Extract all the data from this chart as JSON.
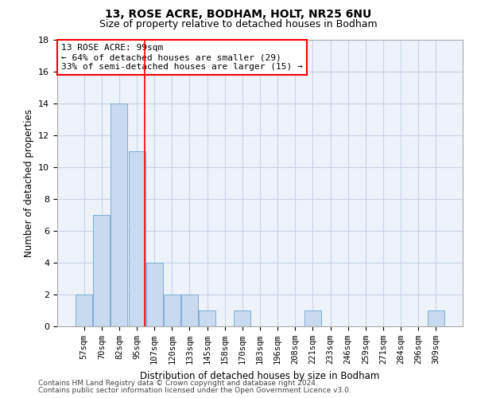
{
  "title1": "13, ROSE ACRE, BODHAM, HOLT, NR25 6NU",
  "title2": "Size of property relative to detached houses in Bodham",
  "xlabel": "Distribution of detached houses by size in Bodham",
  "ylabel": "Number of detached properties",
  "categories": [
    "57sqm",
    "70sqm",
    "82sqm",
    "95sqm",
    "107sqm",
    "120sqm",
    "133sqm",
    "145sqm",
    "158sqm",
    "170sqm",
    "183sqm",
    "196sqm",
    "208sqm",
    "221sqm",
    "233sqm",
    "246sqm",
    "259sqm",
    "271sqm",
    "284sqm",
    "296sqm",
    "309sqm"
  ],
  "values": [
    2,
    7,
    14,
    11,
    4,
    2,
    2,
    1,
    0,
    1,
    0,
    0,
    0,
    1,
    0,
    0,
    0,
    0,
    0,
    0,
    1
  ],
  "bar_color": "#c9d9f0",
  "bar_edgecolor": "#7bafd4",
  "grid_color": "#c8d4e8",
  "vline_color": "red",
  "vline_pos": 3.45,
  "annotation_text": "13 ROSE ACRE: 99sqm\n← 64% of detached houses are smaller (29)\n33% of semi-detached houses are larger (15) →",
  "annotation_box_edgecolor": "red",
  "ylim": [
    0,
    18
  ],
  "yticks": [
    0,
    2,
    4,
    6,
    8,
    10,
    12,
    14,
    16,
    18
  ],
  "footnote1": "Contains HM Land Registry data © Crown copyright and database right 2024.",
  "footnote2": "Contains public sector information licensed under the Open Government Licence v3.0.",
  "background_color": "#eef2fa",
  "title_fontsize": 10,
  "subtitle_fontsize": 9,
  "xlabel_fontsize": 8.5,
  "ylabel_fontsize": 8.5,
  "tick_fontsize": 7.5,
  "annot_fontsize": 8,
  "footnote_fontsize": 6.5
}
